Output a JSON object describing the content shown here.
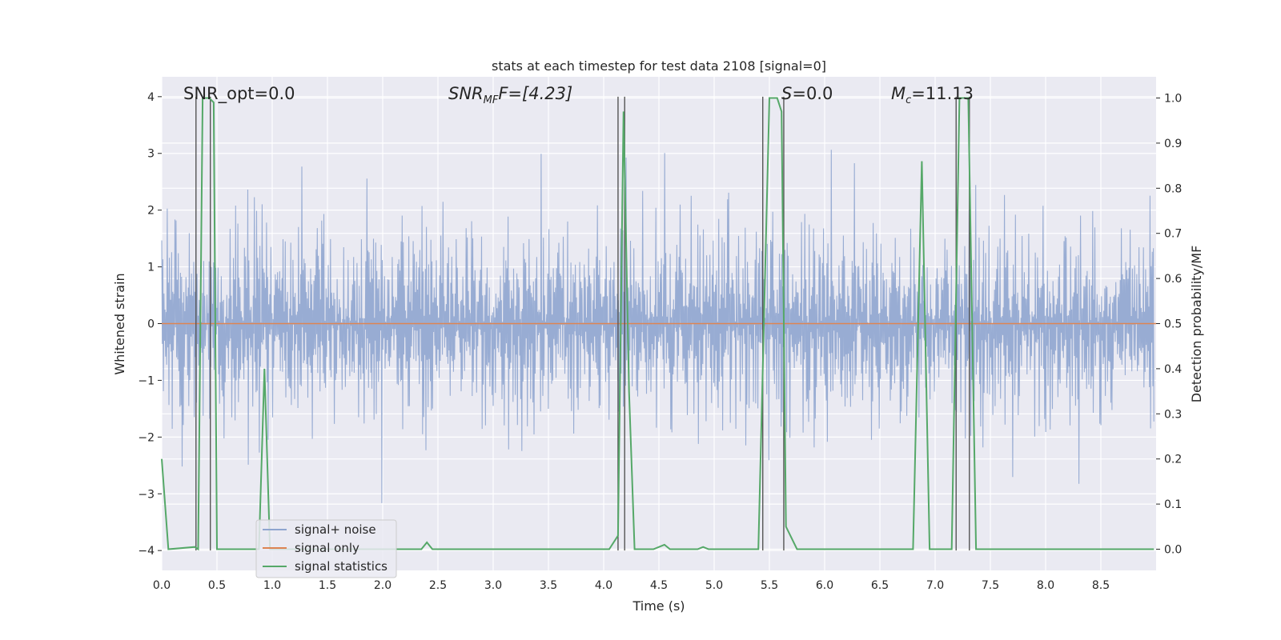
{
  "chart_data": {
    "type": "line",
    "title": "stats at each timestep for test data 2108 [signal=0]",
    "xlabel": "Time (s)",
    "ylabel": "Whitened strain",
    "y2label": "Detection probability/MF",
    "xlim": [
      0,
      9
    ],
    "ylim": [
      -4.35,
      4.35
    ],
    "y2lim": [
      -0.047,
      1.047
    ],
    "xticks": [
      0.0,
      0.5,
      1.0,
      1.5,
      2.0,
      2.5,
      3.0,
      3.5,
      4.0,
      4.5,
      5.0,
      5.5,
      6.0,
      6.5,
      7.0,
      7.5,
      8.0,
      8.5
    ],
    "yticks": [
      -4,
      -3,
      -2,
      -1,
      0,
      1,
      2,
      3,
      4
    ],
    "y2ticks": [
      0.0,
      0.1,
      0.2,
      0.3,
      0.4,
      0.5,
      0.6,
      0.7,
      0.8,
      0.9,
      1.0
    ],
    "grid": true,
    "legend_position": "lower-left",
    "annotations": {
      "snr_opt": "SNR_opt=0.0",
      "snr_mf_main": "SNR",
      "snr_mf_sub": "MF",
      "snr_mf_value": "F=[4.23]",
      "s_main": "S",
      "s_value": "=0.0",
      "mc_main": "M",
      "mc_sub": "c",
      "mc_value": "=11.13"
    },
    "series": [
      {
        "name": "signal+ noise",
        "color": "#8fa5cf",
        "kind": "noise",
        "amplitude_std": 0.9,
        "range": [
          -3.9,
          4.0
        ]
      },
      {
        "name": "signal only",
        "color": "#dd8452",
        "values_constant": 0.0
      },
      {
        "name": "signal statistics",
        "color": "#55a868",
        "axis": "right",
        "x": [
          0.0,
          0.06,
          0.3,
          0.33,
          0.37,
          0.43,
          0.47,
          0.5,
          0.55,
          0.8,
          0.88,
          0.93,
          0.98,
          1.05,
          2.35,
          2.4,
          2.45,
          4.05,
          4.13,
          4.18,
          4.23,
          4.28,
          4.45,
          4.55,
          4.6,
          4.65,
          4.85,
          4.9,
          4.95,
          5.4,
          5.5,
          5.57,
          5.61,
          5.65,
          5.75,
          6.8,
          6.88,
          6.95,
          7.0,
          7.15,
          7.22,
          7.3,
          7.37,
          7.45,
          8.98
        ],
        "values": [
          0.2,
          0.0,
          0.005,
          0.0,
          1.0,
          1.0,
          0.99,
          0.0,
          0.0,
          0.0,
          0.0,
          0.4,
          0.0,
          0.0,
          0.0,
          0.015,
          0.0,
          0.0,
          0.03,
          0.97,
          0.35,
          0.0,
          0.0,
          0.01,
          0.0,
          0.0,
          0.0,
          0.005,
          0.0,
          0.0,
          1.0,
          1.0,
          0.97,
          0.05,
          0.0,
          0.0,
          0.86,
          0.0,
          0.0,
          0.0,
          1.0,
          1.0,
          0.0,
          0.0,
          0.0
        ]
      }
    ],
    "vertical_lines_x": [
      0.31,
      0.44,
      4.13,
      4.19,
      5.44,
      5.63,
      7.19,
      7.31
    ],
    "vertical_lines_range": [
      -4.0,
      4.0
    ]
  }
}
